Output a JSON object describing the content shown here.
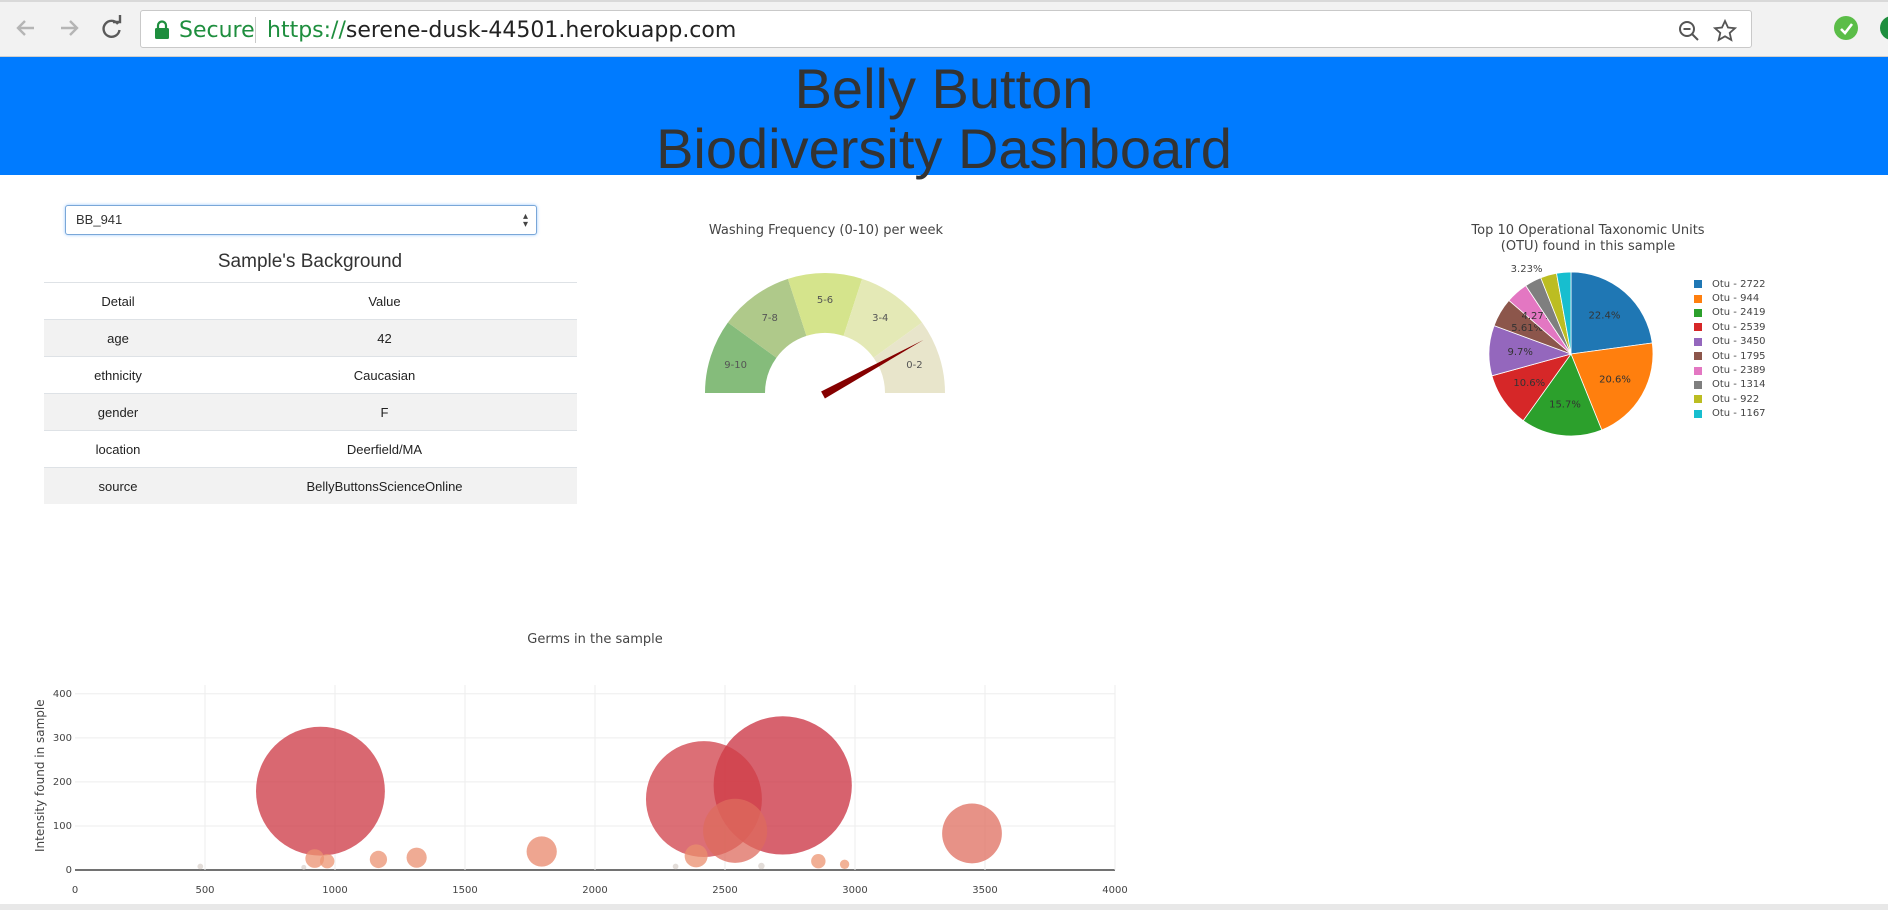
{
  "browser": {
    "secure_label": "Secure",
    "url_scheme": "https://",
    "url_host": "serene-dusk-44501.herokuapp.com"
  },
  "header": {
    "line1": "Belly Button",
    "line2": "Biodiversity Dashboard",
    "background": "#007bff"
  },
  "selector": {
    "selected": "BB_941"
  },
  "background_panel": {
    "title": "Sample's Background",
    "columns": [
      "Detail",
      "Value"
    ],
    "rows": [
      {
        "detail": "age",
        "value": "42"
      },
      {
        "detail": "ethnicity",
        "value": "Caucasian"
      },
      {
        "detail": "gender",
        "value": "F"
      },
      {
        "detail": "location",
        "value": "Deerfield/MA"
      },
      {
        "detail": "source",
        "value": "BellyButtonsScienceOnline"
      }
    ]
  },
  "chart_data": [
    {
      "type": "gauge",
      "title": "Washing Frequency (0-10) per week",
      "segments": [
        {
          "label": "9-10",
          "color": "#85bc7b"
        },
        {
          "label": "7-8",
          "color": "#afc98a"
        },
        {
          "label": "5-6",
          "color": "#d5e48c"
        },
        {
          "label": "3-4",
          "color": "#e4e9b6"
        },
        {
          "label": "0-2",
          "color": "#e8e5cb"
        }
      ],
      "range": [
        0,
        10
      ],
      "needle_value": 1,
      "needle_color": "#850000"
    },
    {
      "type": "pie",
      "title_lines": [
        "Top 10 Operational Taxonomic Units",
        "(OTU) found in this sample"
      ],
      "labels": [
        "Otu - 2722",
        "Otu - 944",
        "Otu - 2419",
        "Otu - 2539",
        "Otu - 3450",
        "Otu - 1795",
        "Otu - 2389",
        "Otu - 1314",
        "Otu - 922",
        "Otu - 1167"
      ],
      "values": [
        22.4,
        20.6,
        15.7,
        10.6,
        9.7,
        5.61,
        4.27,
        3.23,
        3.12,
        2.77
      ],
      "slice_text": [
        "22.4%",
        "20.6%",
        "15.7%",
        "10.6%",
        "9.7%",
        "5.61%",
        "4.27%",
        "3.23%",
        "3.12%",
        "2.77%"
      ],
      "colors": [
        "#1f77b4",
        "#ff7f0e",
        "#2ca02c",
        "#d62728",
        "#9467bd",
        "#8c564b",
        "#e377c2",
        "#7f7f7f",
        "#bcbd22",
        "#17becf"
      ],
      "legend_position": "right"
    },
    {
      "type": "scatter",
      "title": "Germs in the sample",
      "ylabel": "Intensity found in sample",
      "xlim": [
        0,
        4000
      ],
      "ylim": [
        0,
        420
      ],
      "x_ticks": [
        0,
        500,
        1000,
        1500,
        2000,
        2500,
        3000,
        3500,
        4000
      ],
      "y_ticks": [
        0,
        100,
        200,
        300,
        400
      ],
      "x_tick_labels": [
        "0",
        "500",
        "1000",
        "1500",
        "2000",
        "2500",
        "3000",
        "3500",
        "4000"
      ],
      "y_tick_labels": [
        "0",
        "100",
        "200",
        "300",
        "400"
      ],
      "grid": true,
      "points": [
        {
          "x": 944,
          "y": 179
        },
        {
          "x": 2722,
          "y": 192
        },
        {
          "x": 2419,
          "y": 161
        },
        {
          "x": 2539,
          "y": 89
        },
        {
          "x": 3450,
          "y": 83
        },
        {
          "x": 1795,
          "y": 42
        },
        {
          "x": 2389,
          "y": 32
        },
        {
          "x": 1314,
          "y": 28
        },
        {
          "x": 922,
          "y": 26
        },
        {
          "x": 1167,
          "y": 24
        },
        {
          "x": 2859,
          "y": 20
        },
        {
          "x": 970,
          "y": 20
        },
        {
          "x": 2960,
          "y": 13
        },
        {
          "x": 482,
          "y": 8
        },
        {
          "x": 2310,
          "y": 8
        },
        {
          "x": 2640,
          "y": 9
        },
        {
          "x": 880,
          "y": 6
        }
      ]
    }
  ]
}
